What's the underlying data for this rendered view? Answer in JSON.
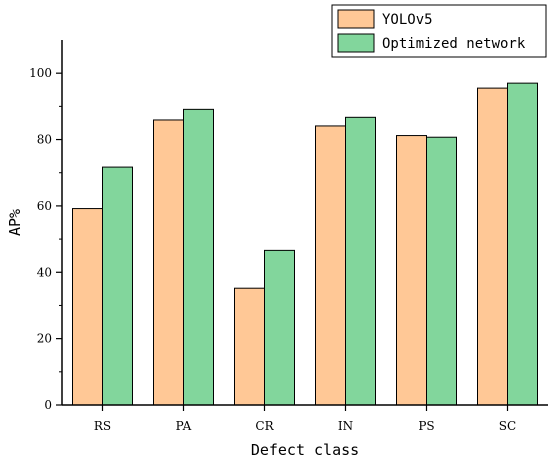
{
  "chart_data": {
    "type": "bar",
    "title": "",
    "xlabel": "Defect class",
    "ylabel": "AP%",
    "categories": [
      "RS",
      "PA",
      "CR",
      "IN",
      "PS",
      "SC"
    ],
    "series": [
      {
        "name": "YOLOv5",
        "values": [
          59.2,
          85.9,
          35.2,
          84.1,
          81.2,
          95.5
        ],
        "color": "#FFC896"
      },
      {
        "name": "Optimized network",
        "values": [
          71.7,
          89.1,
          46.6,
          86.7,
          80.7,
          97.0
        ],
        "color": "#82D69C"
      }
    ],
    "ylim": [
      0,
      110
    ],
    "yticks": [
      0,
      20,
      40,
      60,
      80,
      100
    ],
    "grid": false,
    "legend_position": "top-right"
  }
}
